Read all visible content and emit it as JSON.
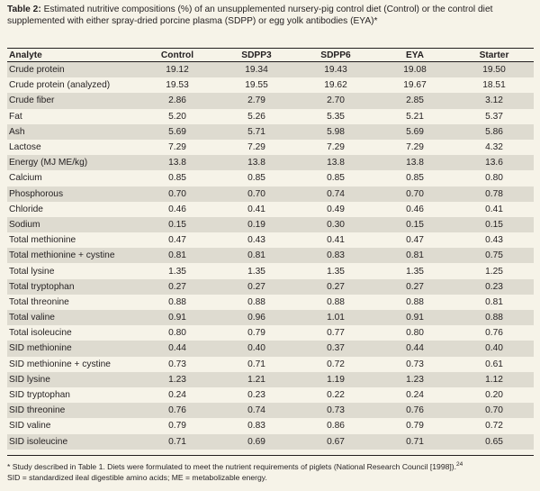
{
  "caption": {
    "label": "Table 2:",
    "text": " Estimated nutritive compositions (%) of an unsupplemented nursery-pig control diet (Control) or the control diet supplemented with either spray-dried porcine plasma (SDPP) or egg yolk antibodies (EYA)*"
  },
  "table": {
    "headers": [
      "Analyte",
      "Control",
      "SDPP3",
      "SDPP6",
      "EYA",
      "Starter"
    ],
    "rows": [
      [
        "Crude protein",
        "19.12",
        "19.34",
        "19.43",
        "19.08",
        "19.50"
      ],
      [
        "Crude protein (analyzed)",
        "19.53",
        "19.55",
        "19.62",
        "19.67",
        "18.51"
      ],
      [
        "Crude fiber",
        "2.86",
        "2.79",
        "2.70",
        "2.85",
        "3.12"
      ],
      [
        "Fat",
        "5.20",
        "5.26",
        "5.35",
        "5.21",
        "5.37"
      ],
      [
        "Ash",
        "5.69",
        "5.71",
        "5.98",
        "5.69",
        "5.86"
      ],
      [
        "Lactose",
        "7.29",
        "7.29",
        "7.29",
        "7.29",
        "4.32"
      ],
      [
        "Energy (MJ ME/kg)",
        "13.8",
        "13.8",
        "13.8",
        "13.8",
        "13.6"
      ],
      [
        "Calcium",
        "0.85",
        "0.85",
        "0.85",
        "0.85",
        "0.80"
      ],
      [
        "Phosphorous",
        "0.70",
        "0.70",
        "0.74",
        "0.70",
        "0.78"
      ],
      [
        "Chloride",
        "0.46",
        "0.41",
        "0.49",
        "0.46",
        "0.41"
      ],
      [
        "Sodium",
        "0.15",
        "0.19",
        "0.30",
        "0.15",
        "0.15"
      ],
      [
        "Total methionine",
        "0.47",
        "0.43",
        "0.41",
        "0.47",
        "0.43"
      ],
      [
        "Total methionine + cystine",
        "0.81",
        "0.81",
        "0.83",
        "0.81",
        "0.75"
      ],
      [
        "Total lysine",
        "1.35",
        "1.35",
        "1.35",
        "1.35",
        "1.25"
      ],
      [
        "Total tryptophan",
        "0.27",
        "0.27",
        "0.27",
        "0.27",
        "0.23"
      ],
      [
        "Total threonine",
        "0.88",
        "0.88",
        "0.88",
        "0.88",
        "0.81"
      ],
      [
        "Total valine",
        "0.91",
        "0.96",
        "1.01",
        "0.91",
        "0.88"
      ],
      [
        "Total isoleucine",
        "0.80",
        "0.79",
        "0.77",
        "0.80",
        "0.76"
      ],
      [
        "SID methionine",
        "0.44",
        "0.40",
        "0.37",
        "0.44",
        "0.40"
      ],
      [
        "SID methionine + cystine",
        "0.73",
        "0.71",
        "0.72",
        "0.73",
        "0.61"
      ],
      [
        "SID lysine",
        "1.23",
        "1.21",
        "1.19",
        "1.23",
        "1.12"
      ],
      [
        "SID tryptophan",
        "0.24",
        "0.23",
        "0.22",
        "0.24",
        "0.20"
      ],
      [
        "SID threonine",
        "0.76",
        "0.74",
        "0.73",
        "0.76",
        "0.70"
      ],
      [
        "SID valine",
        "0.79",
        "0.83",
        "0.86",
        "0.79",
        "0.72"
      ],
      [
        "SID isoleucine",
        "0.71",
        "0.69",
        "0.67",
        "0.71",
        "0.65"
      ]
    ]
  },
  "footnote": {
    "line1": "* Study described in Table 1. Diets were formulated to meet the nutrient requirements of piglets (National Research Council [1998]).",
    "line1_ref": "24",
    "line2": "SID = standardized ileal digestible amino acids; ME = metabolizable energy."
  }
}
